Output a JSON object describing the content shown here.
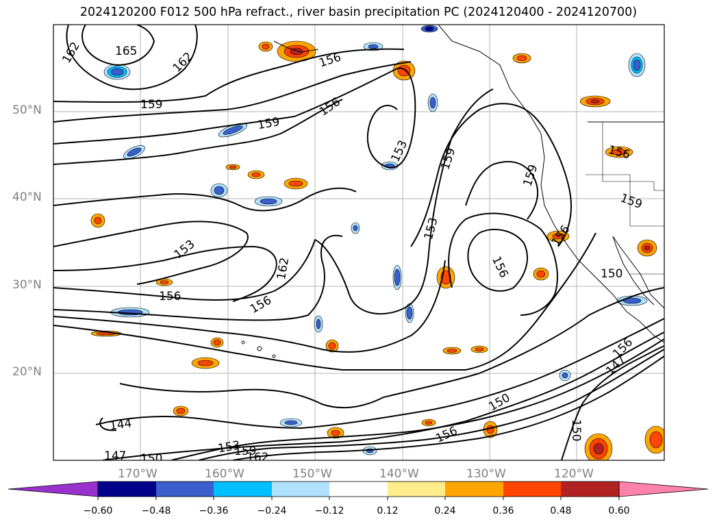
{
  "title": "2024120200 F012 500 hPa refract., river basin precipitation PC (2024120400 - 2024120700)",
  "map": {
    "projection": "lat-lon",
    "extent": {
      "lon_min": -180,
      "lon_max": -110,
      "lat_min": 10,
      "lat_max": 60
    },
    "gridlines": true,
    "lat_labels": [
      "50°N",
      "40°N",
      "30°N",
      "20°N"
    ],
    "lon_labels": [
      "170°W",
      "160°W",
      "150°W",
      "140°W",
      "130°W",
      "120°W"
    ],
    "contour_labels": [
      "162",
      "165",
      "162",
      "156",
      "156",
      "159",
      "159",
      "153",
      "159",
      "159",
      "156",
      "159",
      "153",
      "153",
      "162",
      "156",
      "156",
      "156",
      "156",
      "150",
      "156",
      "147",
      "144",
      "147",
      "150",
      "153",
      "159",
      "162",
      "150",
      "156",
      "150"
    ]
  },
  "colorbar": {
    "ticks": [
      "−0.60",
      "−0.48",
      "−0.36",
      "−0.24",
      "−0.12",
      "0.12",
      "0.24",
      "0.36",
      "0.48",
      "0.60"
    ],
    "colors": [
      "#9932cc",
      "#00008b",
      "#3a5fcd",
      "#00bfff",
      "#b0e2ff",
      "#ffffff",
      "#ffec8b",
      "#ffa500",
      "#ff4500",
      "#b22222",
      "#ff82ab"
    ],
    "extend": "both"
  }
}
